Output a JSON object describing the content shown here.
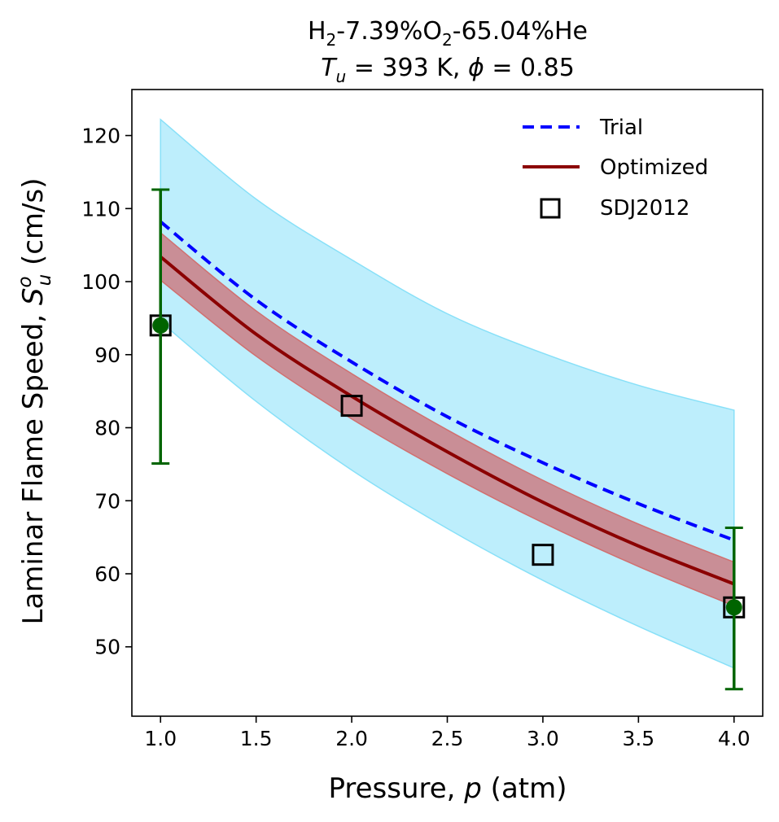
{
  "chart_data": {
    "type": "line",
    "title": {
      "line1": {
        "a": "H",
        "sub1": "2",
        "b": "-7.39%O",
        "sub2": "2",
        "c": "-65.04%He"
      },
      "line2": {
        "var": "T",
        "sub": "u",
        "mid": " = 393 K, ",
        "phi": "ϕ",
        "end": " = 0.85"
      }
    },
    "xlabel": {
      "pre": "Pressure, ",
      "var": "p",
      "post": " (atm)"
    },
    "ylabel": {
      "pre": "Laminar Flame Speed, ",
      "var": "S",
      "sup": "o",
      "sub": "u",
      "post": " (cm/s)"
    },
    "xlim": [
      0.85,
      4.15
    ],
    "ylim": [
      40.5,
      126.3
    ],
    "xticks": [
      1.0,
      1.5,
      2.0,
      2.5,
      3.0,
      3.5,
      4.0
    ],
    "xtick_labels": [
      "1.0",
      "1.5",
      "2.0",
      "2.5",
      "3.0",
      "3.5",
      "4.0"
    ],
    "yticks": [
      50,
      60,
      70,
      80,
      90,
      100,
      110,
      120
    ],
    "ytick_labels": [
      "50",
      "60",
      "70",
      "80",
      "90",
      "100",
      "110",
      "120"
    ],
    "legend_position": "upper-right",
    "series": [
      {
        "name": "Trial",
        "style": "dashed",
        "color": "#0000ff",
        "x": [
          1.0,
          1.5,
          2.0,
          2.5,
          3.0,
          3.5,
          4.0
        ],
        "y": [
          108.2,
          97.5,
          89.0,
          81.5,
          75.2,
          69.6,
          64.6
        ]
      },
      {
        "name": "Optimized",
        "style": "solid",
        "color": "#8b0000",
        "x": [
          1.0,
          1.5,
          2.0,
          2.5,
          3.0,
          3.5,
          4.0
        ],
        "y": [
          103.4,
          92.8,
          84.3,
          76.7,
          69.8,
          63.8,
          58.6
        ]
      },
      {
        "name": "SDJ2012",
        "style": "square-markers",
        "color": "#000000",
        "x": [
          1.0,
          2.0,
          3.0,
          4.0
        ],
        "y": [
          94.0,
          83.0,
          62.6,
          55.4
        ]
      }
    ],
    "bands": [
      {
        "label": "trial uncertainty band",
        "color": "#bdeefc",
        "edge": "#88e0f8",
        "x": [
          1.0,
          1.5,
          2.0,
          2.5,
          3.0,
          3.5,
          4.0
        ],
        "lower": [
          94.5,
          83.6,
          74.2,
          66.2,
          59.1,
          52.8,
          47.1
        ],
        "upper": [
          122.2,
          111.3,
          103.0,
          95.6,
          90.2,
          85.8,
          82.4
        ]
      },
      {
        "label": "optimized uncertainty band",
        "color": "#c98890",
        "edge": "#d07070",
        "x": [
          1.0,
          1.5,
          2.0,
          2.5,
          3.0,
          3.5,
          4.0
        ],
        "lower": [
          100.2,
          89.8,
          81.2,
          73.7,
          67.0,
          61.0,
          55.6
        ],
        "upper": [
          106.7,
          96.0,
          87.4,
          79.7,
          72.8,
          66.8,
          61.6
        ]
      }
    ],
    "error_bars": {
      "color": "#006400",
      "x": [
        1.0,
        4.0
      ],
      "y": [
        94.0,
        55.4
      ],
      "lower": [
        75.1,
        44.2
      ],
      "upper": [
        112.6,
        66.3
      ]
    }
  }
}
